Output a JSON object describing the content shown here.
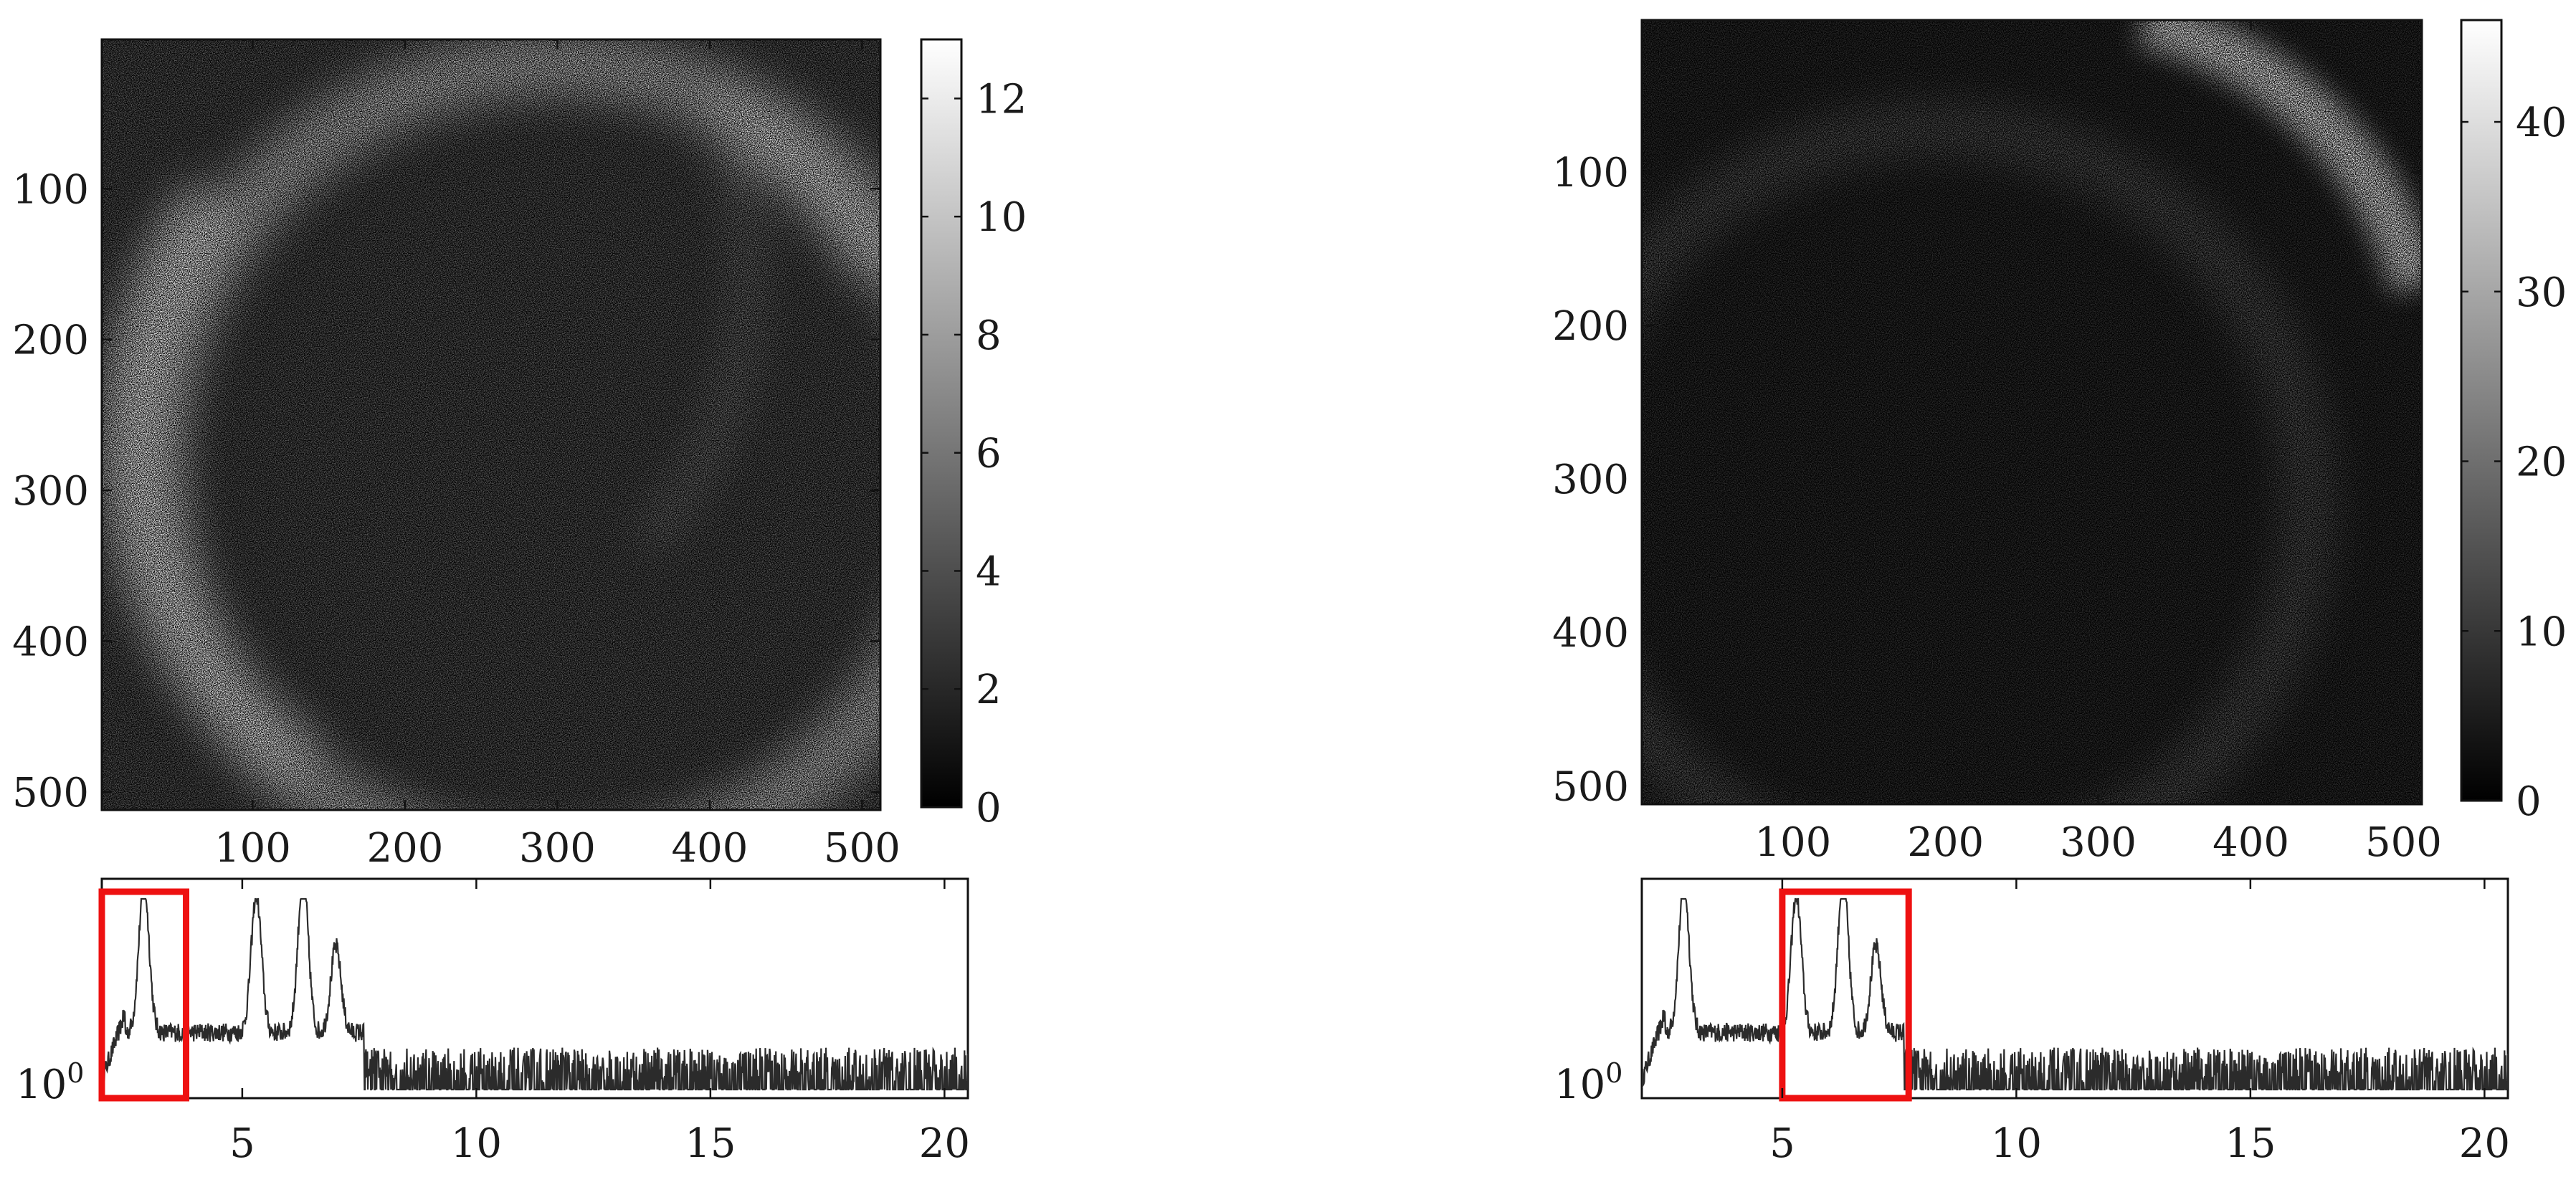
{
  "chart_data": [
    {
      "type": "heatmap",
      "title": "",
      "colormap": "gray",
      "x_ticks": [
        100,
        200,
        300,
        400,
        500
      ],
      "y_ticks": [
        100,
        200,
        300,
        400,
        500
      ],
      "xlim": [
        1,
        512
      ],
      "ylim": [
        512,
        1
      ],
      "colorbar": {
        "range": [
          0,
          13
        ],
        "ticks": [
          0,
          2,
          4,
          6,
          8,
          10,
          12
        ]
      },
      "pattern": "noisy bright ring, brighter on left and upper-right edges"
    },
    {
      "type": "heatmap",
      "title": "",
      "colormap": "gray",
      "x_ticks": [
        100,
        200,
        300,
        400,
        500
      ],
      "y_ticks": [
        100,
        200,
        300,
        400,
        500
      ],
      "xlim": [
        1,
        512
      ],
      "ylim": [
        512,
        1
      ],
      "colorbar": {
        "range": [
          0,
          46
        ],
        "ticks": [
          0,
          10,
          20,
          30,
          40
        ]
      },
      "pattern": "very bright arc in the top-right corner, faint ring elsewhere"
    },
    {
      "type": "line",
      "title": "",
      "y_scale": "log",
      "x_ticks": [
        5,
        10,
        15,
        20
      ],
      "y_tick_label": "10^0",
      "xlim": [
        2,
        20.5
      ],
      "peaks_x": [
        2.9,
        5.3,
        6.3,
        7.0
      ],
      "highlight_range": [
        2.0,
        3.8
      ],
      "highlight_color": "#ee1111"
    },
    {
      "type": "line",
      "title": "",
      "y_scale": "log",
      "x_ticks": [
        5,
        10,
        15,
        20
      ],
      "y_tick_label": "10^0",
      "xlim": [
        2,
        20.5
      ],
      "peaks_x": [
        2.9,
        5.3,
        6.3,
        7.0
      ],
      "highlight_range": [
        5.0,
        7.7
      ],
      "highlight_color": "#ee1111"
    }
  ]
}
